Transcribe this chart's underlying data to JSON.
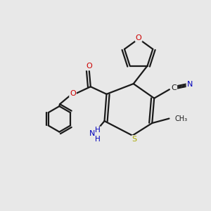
{
  "background_color": "#e8e8e8",
  "bond_color": "#1a1a1a",
  "O_color": "#cc0000",
  "N_color": "#0000bb",
  "S_color": "#aaaa00",
  "C_color": "#1a1a1a",
  "figsize": [
    3.0,
    3.0
  ],
  "dpi": 100,
  "xlim": [
    0,
    10
  ],
  "ylim": [
    0,
    10
  ]
}
